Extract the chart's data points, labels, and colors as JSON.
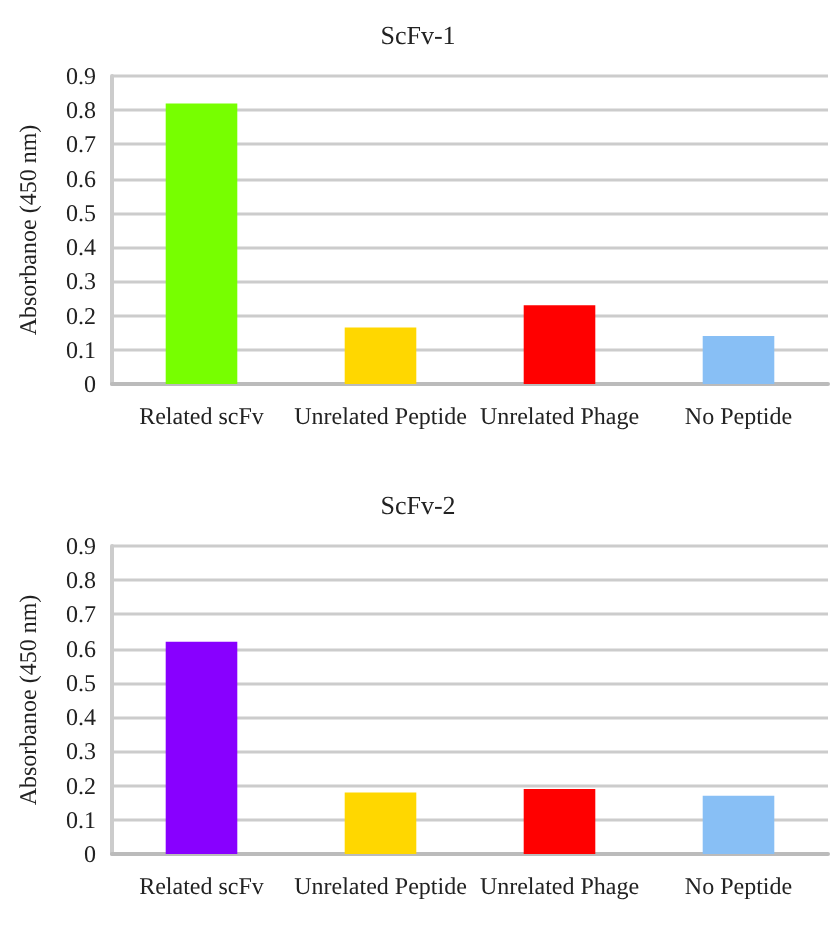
{
  "chart_data": [
    {
      "type": "bar",
      "title": "ScFv-1",
      "ylabel": "Absorbanoe (450 nm)",
      "categories": [
        "Related scFv",
        "Unrelated Peptide",
        "Unrelated Phage",
        "No Peptide"
      ],
      "values": [
        0.82,
        0.165,
        0.23,
        0.14
      ],
      "colors": [
        "#77ff00",
        "#ffd700",
        "#ff0000",
        "#88bff5"
      ],
      "ylim": [
        0,
        0.9
      ],
      "yticks": [
        0,
        0.1,
        0.2,
        0.3,
        0.4,
        0.5,
        0.6,
        0.7,
        0.8,
        0.9
      ],
      "grid": "y"
    },
    {
      "type": "bar",
      "title": "ScFv-2",
      "ylabel": "Absorbanoe (450 nm)",
      "categories": [
        "Related scFv",
        "Unrelated Peptide",
        "Unrelated Phage",
        "No Peptide"
      ],
      "values": [
        0.62,
        0.18,
        0.19,
        0.17
      ],
      "colors": [
        "#8800ff",
        "#ffd700",
        "#ff0000",
        "#88bff5"
      ],
      "ylim": [
        0,
        0.9
      ],
      "yticks": [
        0,
        0.1,
        0.2,
        0.3,
        0.4,
        0.5,
        0.6,
        0.7,
        0.8,
        0.9
      ],
      "grid": "y"
    }
  ]
}
